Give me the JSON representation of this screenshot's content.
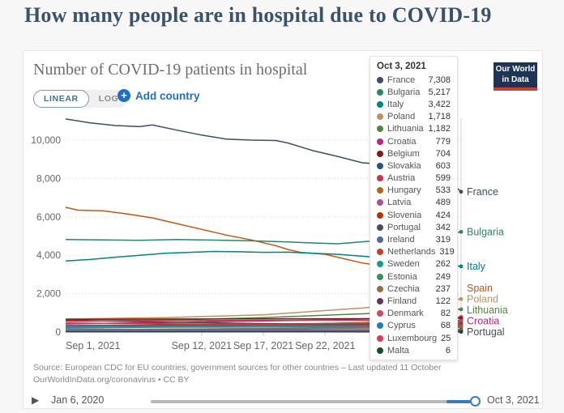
{
  "page": {
    "title": "How many people are in hospital due to COVID-19"
  },
  "header": {
    "chart_title": "Number of COVID-19 patients in hospital",
    "toggle": {
      "linear_label": "LINEAR",
      "log_label": "LOG"
    },
    "add_country_label": "Add country",
    "plus_glyph": "+"
  },
  "logo": {
    "line1": "Our World",
    "line2": "in Data"
  },
  "tooltip": {
    "date": "Oct 3, 2021",
    "rows": [
      {
        "country": "France",
        "value": "7,308"
      },
      {
        "country": "Bulgaria",
        "value": "5,217"
      },
      {
        "country": "Italy",
        "value": "3,422"
      },
      {
        "country": "Poland",
        "value": "1,718"
      },
      {
        "country": "Lithuania",
        "value": "1,182"
      },
      {
        "country": "Croatia",
        "value": "779"
      },
      {
        "country": "Belgium",
        "value": "704"
      },
      {
        "country": "Slovakia",
        "value": "603"
      },
      {
        "country": "Austria",
        "value": "599"
      },
      {
        "country": "Hungary",
        "value": "533"
      },
      {
        "country": "Latvia",
        "value": "489"
      },
      {
        "country": "Slovenia",
        "value": "424"
      },
      {
        "country": "Portugal",
        "value": "342"
      },
      {
        "country": "Ireland",
        "value": "319"
      },
      {
        "country": "Netherlands",
        "value": "319"
      },
      {
        "country": "Sweden",
        "value": "262"
      },
      {
        "country": "Estonia",
        "value": "249"
      },
      {
        "country": "Czechia",
        "value": "237"
      },
      {
        "country": "Finland",
        "value": "122"
      },
      {
        "country": "Denmark",
        "value": "82"
      },
      {
        "country": "Cyprus",
        "value": "68"
      },
      {
        "country": "Luxembourg",
        "value": "25"
      },
      {
        "country": "Malta",
        "value": "6"
      }
    ]
  },
  "source": {
    "line1": "Source: European CDC for EU countries, government sources for other countries – Last updated 11 October",
    "line2": "OurWorldInData.org/coronavirus • CC BY"
  },
  "timeline": {
    "start": "Jan 6, 2020",
    "end": "Oct 3, 2021",
    "play_glyph": "▶"
  },
  "chart_data": {
    "type": "line",
    "title": "Number of COVID-19 patients in hospital",
    "hover_date": "Oct 3, 2021",
    "x_range_days": 32,
    "x_ticks": [
      {
        "label": "Sep 1, 2021",
        "day": 0,
        "align": "start"
      },
      {
        "label": "Sep 12, 2021",
        "day": 11,
        "align": "middle"
      },
      {
        "label": "Sep 17, 2021",
        "day": 16,
        "align": "middle"
      },
      {
        "label": "Sep 22, 2021",
        "day": 21,
        "align": "middle"
      }
    ],
    "y_ticks": [
      0,
      2000,
      4000,
      6000,
      8000,
      10000
    ],
    "ylim": [
      0,
      11500
    ],
    "grid": true,
    "series": [
      {
        "name": "France",
        "color": "#3b4e65",
        "label": true,
        "points": [
          [
            0,
            11100
          ],
          [
            2,
            10900
          ],
          [
            4,
            10760
          ],
          [
            6,
            10700
          ],
          [
            7,
            10790
          ],
          [
            9,
            10520
          ],
          [
            11,
            10260
          ],
          [
            13,
            10050
          ],
          [
            15,
            10000
          ],
          [
            17,
            9980
          ],
          [
            18,
            9850
          ],
          [
            20,
            9450
          ],
          [
            22,
            9150
          ],
          [
            24,
            8820
          ],
          [
            26,
            8720
          ],
          [
            27,
            8700
          ],
          [
            28,
            8550
          ],
          [
            30,
            8150
          ],
          [
            31,
            7900
          ],
          [
            32,
            7308
          ]
        ]
      },
      {
        "name": "Spain",
        "color": "#be5915",
        "label": true,
        "no_end_dot": true,
        "points": [
          [
            0,
            6500
          ],
          [
            1,
            6350
          ],
          [
            3,
            6320
          ],
          [
            5,
            6150
          ],
          [
            7,
            5950
          ],
          [
            9,
            5650
          ],
          [
            11,
            5350
          ],
          [
            13,
            5050
          ],
          [
            15,
            4800
          ],
          [
            16,
            4650
          ],
          [
            17,
            4500
          ],
          [
            18,
            4300
          ],
          [
            19,
            4150
          ],
          [
            20,
            4100
          ],
          [
            21,
            4050
          ],
          [
            22,
            3900
          ],
          [
            24,
            3600
          ],
          [
            26,
            3400
          ],
          [
            28,
            3100
          ],
          [
            30,
            2500
          ],
          [
            31,
            2270
          ]
        ]
      },
      {
        "name": "Bulgaria",
        "color": "#2c8465",
        "label": true,
        "points": [
          [
            0,
            4820
          ],
          [
            3,
            4800
          ],
          [
            6,
            4780
          ],
          [
            9,
            4820
          ],
          [
            12,
            4790
          ],
          [
            15,
            4750
          ],
          [
            18,
            4690
          ],
          [
            20,
            4640
          ],
          [
            22,
            4600
          ],
          [
            24,
            4700
          ],
          [
            26,
            4800
          ],
          [
            28,
            4920
          ],
          [
            30,
            5060
          ],
          [
            32,
            5217
          ]
        ]
      },
      {
        "name": "Italy",
        "color": "#00847e",
        "label": true,
        "points": [
          [
            0,
            3700
          ],
          [
            2,
            3780
          ],
          [
            4,
            3900
          ],
          [
            6,
            4000
          ],
          [
            8,
            4100
          ],
          [
            10,
            4150
          ],
          [
            12,
            4200
          ],
          [
            14,
            4180
          ],
          [
            16,
            4150
          ],
          [
            18,
            4160
          ],
          [
            20,
            4100
          ],
          [
            22,
            4050
          ],
          [
            24,
            3950
          ],
          [
            26,
            3850
          ],
          [
            28,
            3700
          ],
          [
            30,
            3550
          ],
          [
            32,
            3422
          ]
        ]
      },
      {
        "name": "Poland",
        "color": "#bf915e",
        "label": true,
        "points": [
          [
            0,
            680
          ],
          [
            8,
            750
          ],
          [
            16,
            900
          ],
          [
            24,
            1250
          ],
          [
            32,
            1718
          ]
        ]
      },
      {
        "name": "Lithuania",
        "color": "#578145",
        "label": true,
        "points": [
          [
            0,
            560
          ],
          [
            8,
            620
          ],
          [
            16,
            750
          ],
          [
            24,
            950
          ],
          [
            32,
            1182
          ]
        ]
      },
      {
        "name": "Croatia",
        "color": "#c1247c",
        "label": true,
        "points": [
          [
            0,
            420
          ],
          [
            10,
            520
          ],
          [
            20,
            620
          ],
          [
            32,
            779
          ]
        ]
      },
      {
        "name": "Belgium",
        "color": "#8c1515",
        "label": false,
        "points": [
          [
            0,
            660
          ],
          [
            10,
            680
          ],
          [
            20,
            690
          ],
          [
            32,
            704
          ]
        ]
      },
      {
        "name": "Slovakia",
        "color": "#23537f",
        "label": false,
        "points": [
          [
            0,
            220
          ],
          [
            10,
            320
          ],
          [
            20,
            430
          ],
          [
            32,
            603
          ]
        ]
      },
      {
        "name": "Austria",
        "color": "#cf344c",
        "label": false,
        "points": [
          [
            0,
            560
          ],
          [
            10,
            600
          ],
          [
            20,
            610
          ],
          [
            32,
            599
          ]
        ]
      },
      {
        "name": "Hungary",
        "color": "#b06818",
        "label": false,
        "points": [
          [
            0,
            290
          ],
          [
            10,
            360
          ],
          [
            20,
            440
          ],
          [
            32,
            533
          ]
        ]
      },
      {
        "name": "Latvia",
        "color": "#a2559c",
        "label": false,
        "points": [
          [
            0,
            200
          ],
          [
            10,
            280
          ],
          [
            20,
            380
          ],
          [
            32,
            489
          ]
        ]
      },
      {
        "name": "Slovenia",
        "color": "#b13507",
        "label": false,
        "points": [
          [
            0,
            340
          ],
          [
            10,
            380
          ],
          [
            20,
            400
          ],
          [
            32,
            424
          ]
        ]
      },
      {
        "name": "Portugal",
        "color": "#4b4b5c",
        "label": true,
        "points": [
          [
            0,
            620
          ],
          [
            8,
            520
          ],
          [
            16,
            440
          ],
          [
            24,
            380
          ],
          [
            32,
            342
          ]
        ]
      },
      {
        "name": "Ireland",
        "color": "#4c6a9c",
        "label": false,
        "points": [
          [
            0,
            330
          ],
          [
            10,
            320
          ],
          [
            20,
            315
          ],
          [
            32,
            319
          ]
        ]
      },
      {
        "name": "Netherlands",
        "color": "#c4402d",
        "label": false,
        "points": [
          [
            0,
            470
          ],
          [
            10,
            420
          ],
          [
            20,
            370
          ],
          [
            32,
            319
          ]
        ]
      },
      {
        "name": "Sweden",
        "color": "#109e8d",
        "label": false,
        "points": [
          [
            0,
            250
          ],
          [
            10,
            255
          ],
          [
            20,
            260
          ],
          [
            32,
            262
          ]
        ]
      },
      {
        "name": "Estonia",
        "color": "#3a915f",
        "label": false,
        "points": [
          [
            0,
            130
          ],
          [
            10,
            160
          ],
          [
            20,
            200
          ],
          [
            32,
            249
          ]
        ]
      },
      {
        "name": "Czechia",
        "color": "#996d39",
        "label": false,
        "points": [
          [
            0,
            120
          ],
          [
            10,
            150
          ],
          [
            20,
            190
          ],
          [
            32,
            237
          ]
        ]
      },
      {
        "name": "Finland",
        "color": "#66325c",
        "label": false,
        "points": [
          [
            0,
            95
          ],
          [
            10,
            105
          ],
          [
            20,
            115
          ],
          [
            32,
            122
          ]
        ]
      },
      {
        "name": "Denmark",
        "color": "#ce4869",
        "label": false,
        "points": [
          [
            0,
            120
          ],
          [
            10,
            105
          ],
          [
            20,
            92
          ],
          [
            32,
            82
          ]
        ]
      },
      {
        "name": "Cyprus",
        "color": "#2579b5",
        "label": false,
        "points": [
          [
            0,
            82
          ],
          [
            10,
            75
          ],
          [
            20,
            70
          ],
          [
            32,
            68
          ]
        ]
      },
      {
        "name": "Luxembourg",
        "color": "#e2365b",
        "label": false,
        "points": [
          [
            0,
            20
          ],
          [
            10,
            22
          ],
          [
            20,
            24
          ],
          [
            32,
            25
          ]
        ]
      },
      {
        "name": "Malta",
        "color": "#1e4a22",
        "label": false,
        "points": [
          [
            0,
            12
          ],
          [
            10,
            10
          ],
          [
            20,
            8
          ],
          [
            32,
            6
          ]
        ]
      }
    ]
  }
}
